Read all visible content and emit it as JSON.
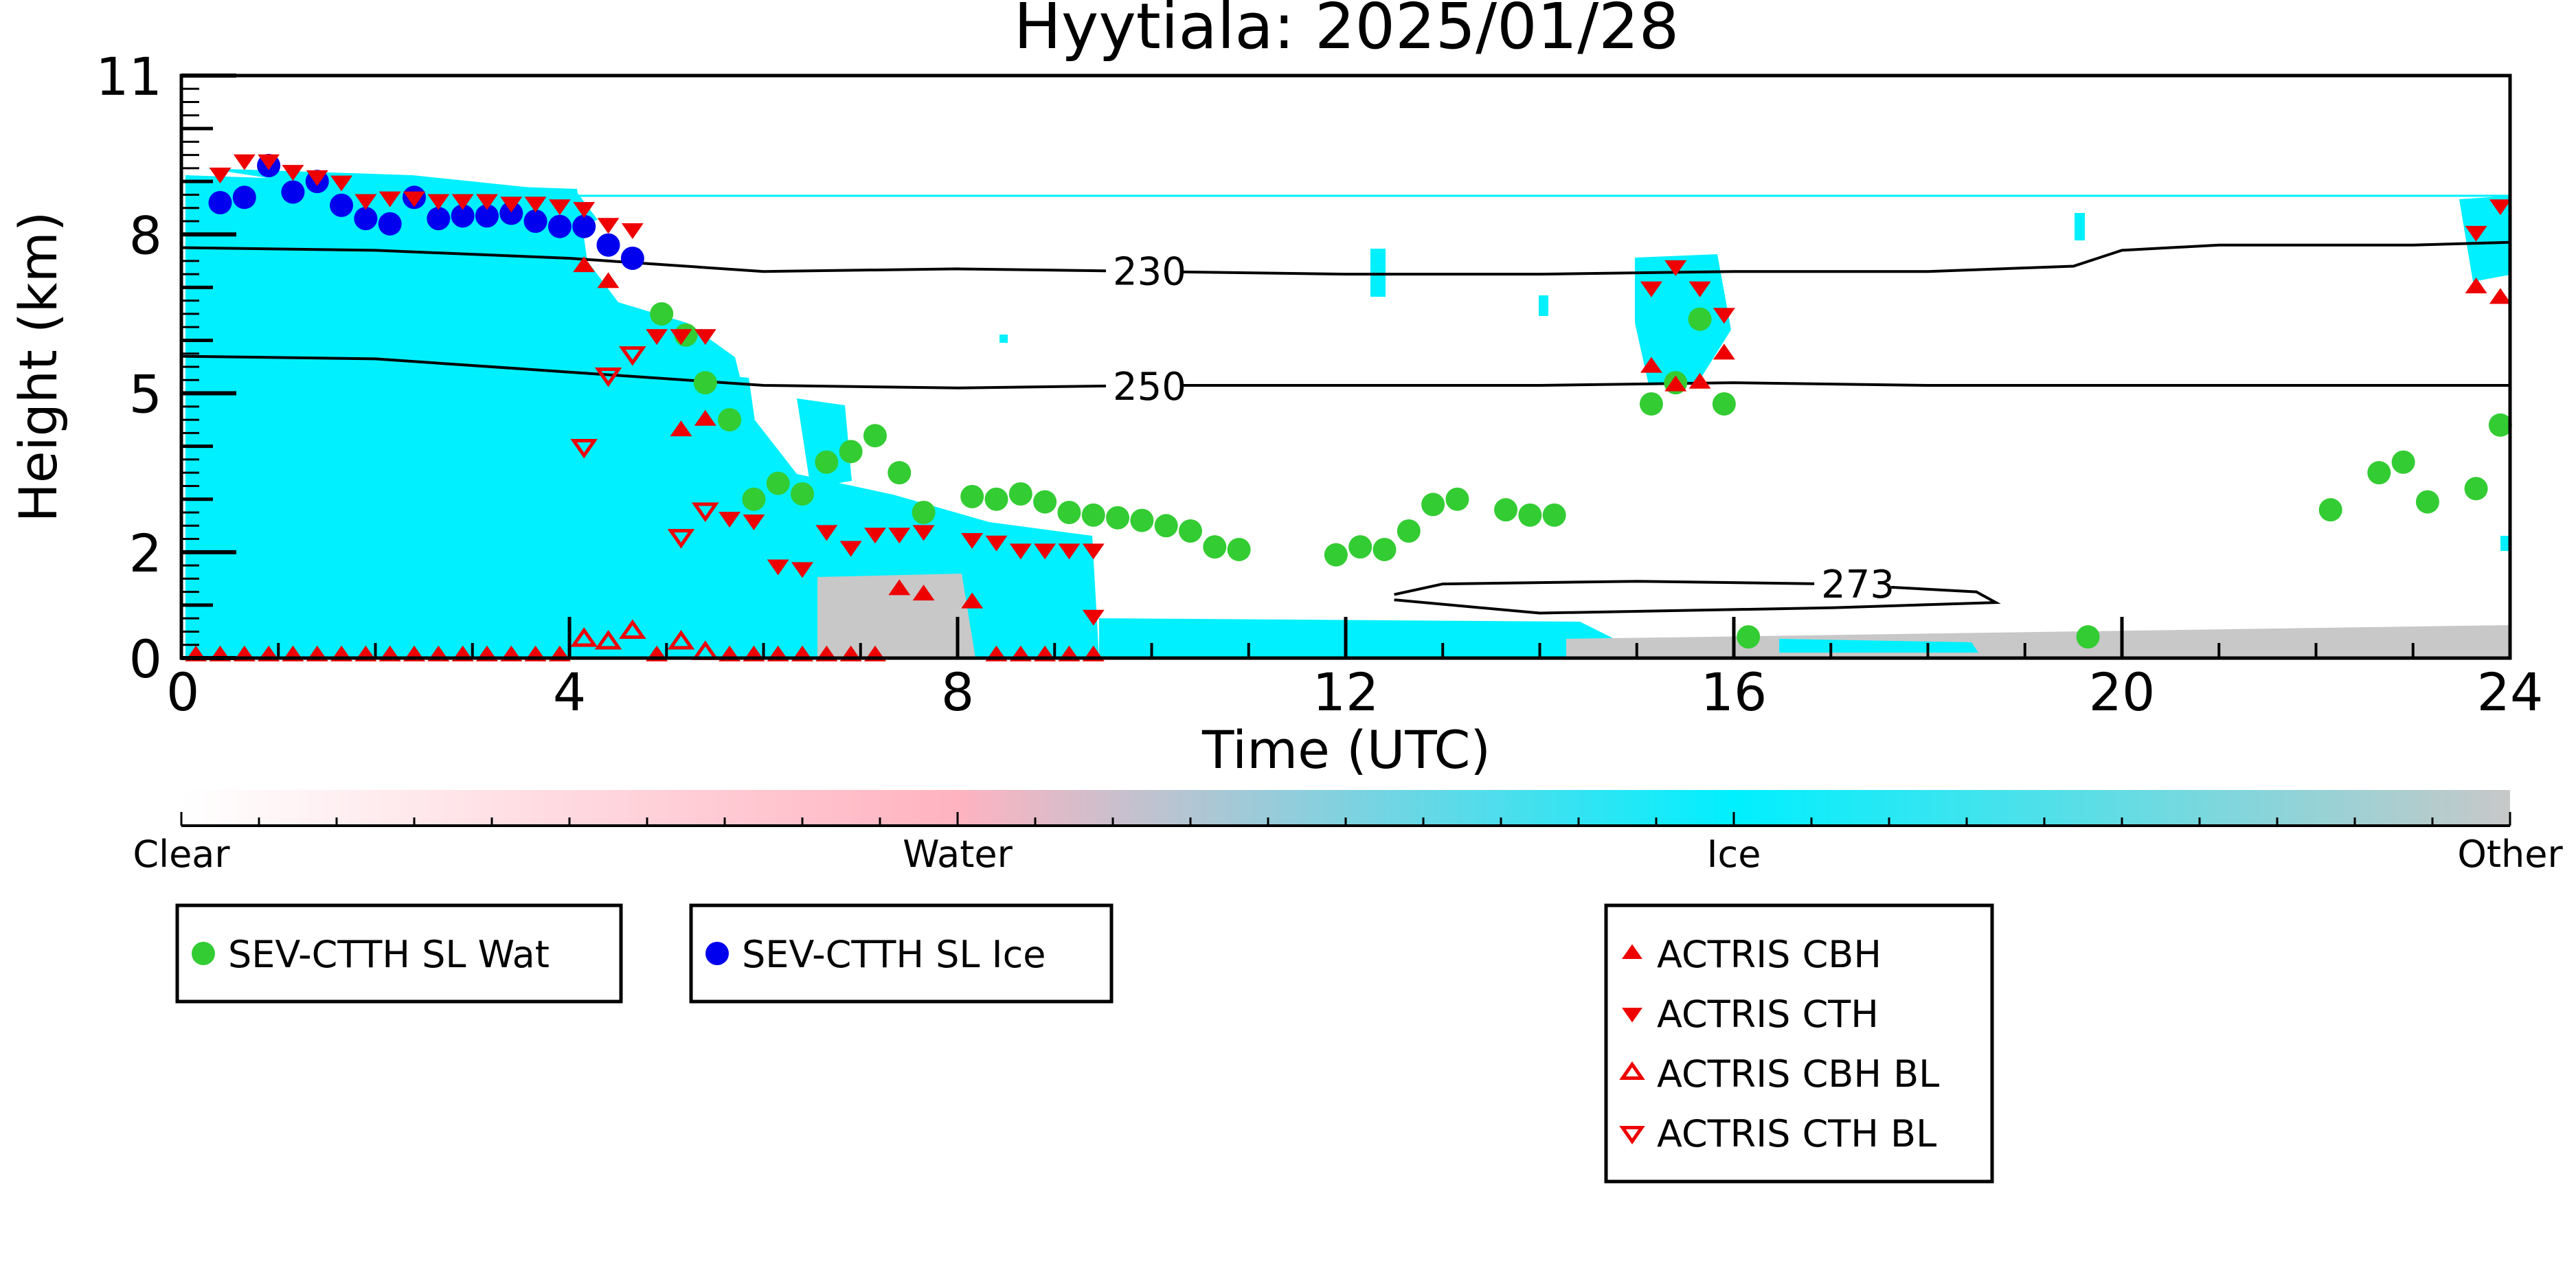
{
  "chart_data": {
    "type": "scatter",
    "title": "Hyytiala: 2025/01/28",
    "xlabel": "Time (UTC)",
    "ylabel": "Height (km)",
    "xlim": [
      0,
      24
    ],
    "ylim": [
      0,
      11
    ],
    "x_ticks": [
      0,
      4,
      8,
      12,
      16,
      20,
      24
    ],
    "y_ticks": [
      0,
      2,
      5,
      8,
      11
    ],
    "y_tick_labels": [
      "0",
      "2",
      "5",
      "8",
      "11"
    ],
    "colorbar": {
      "labels": [
        "Clear",
        "Water",
        "Ice",
        "Other"
      ],
      "colors": [
        "#ffffff",
        "#ffb3c0",
        "#00f0ff",
        "#c8c8c8"
      ]
    },
    "contours": [
      {
        "label": "230",
        "label_x": 9.6,
        "points": [
          [
            0,
            7.75
          ],
          [
            2,
            7.7
          ],
          [
            4,
            7.55
          ],
          [
            6,
            7.3
          ],
          [
            8,
            7.35
          ],
          [
            10,
            7.3
          ],
          [
            12,
            7.25
          ],
          [
            14,
            7.25
          ],
          [
            16,
            7.3
          ],
          [
            18,
            7.3
          ],
          [
            19.5,
            7.4
          ],
          [
            20,
            7.7
          ],
          [
            21,
            7.8
          ],
          [
            23,
            7.8
          ],
          [
            24,
            7.85
          ]
        ]
      },
      {
        "label": "250",
        "label_x": 9.6,
        "points": [
          [
            0,
            5.7
          ],
          [
            2,
            5.65
          ],
          [
            4,
            5.4
          ],
          [
            6,
            5.15
          ],
          [
            8,
            5.1
          ],
          [
            10,
            5.15
          ],
          [
            12,
            5.15
          ],
          [
            14,
            5.15
          ],
          [
            16,
            5.2
          ],
          [
            18,
            5.15
          ],
          [
            20,
            5.15
          ],
          [
            22,
            5.15
          ],
          [
            24,
            5.15
          ]
        ]
      },
      {
        "label": "273",
        "label_x": 16.9,
        "points": [
          [
            12.5,
            1.2
          ],
          [
            13,
            1.4
          ],
          [
            15,
            1.45
          ],
          [
            17,
            1.4
          ],
          [
            18.5,
            1.25
          ],
          [
            18.7,
            1.05
          ],
          [
            17,
            0.95
          ],
          [
            14,
            0.85
          ],
          [
            12.5,
            1.1
          ]
        ]
      }
    ],
    "series": [
      {
        "name": "SEV-CTTH SL Wat",
        "marker": "circle",
        "color": "#33cc33",
        "points": [
          [
            4.95,
            6.5
          ],
          [
            5.2,
            6.1
          ],
          [
            5.4,
            5.2
          ],
          [
            5.65,
            4.5
          ],
          [
            5.9,
            3.0
          ],
          [
            6.15,
            3.3
          ],
          [
            6.4,
            3.1
          ],
          [
            6.65,
            3.7
          ],
          [
            6.9,
            3.9
          ],
          [
            7.15,
            4.2
          ],
          [
            7.4,
            3.5
          ],
          [
            7.65,
            2.75
          ],
          [
            8.15,
            3.05
          ],
          [
            8.4,
            3.0
          ],
          [
            8.65,
            3.1
          ],
          [
            8.9,
            2.95
          ],
          [
            9.15,
            2.75
          ],
          [
            9.4,
            2.7
          ],
          [
            9.65,
            2.65
          ],
          [
            9.9,
            2.6
          ],
          [
            10.15,
            2.5
          ],
          [
            10.4,
            2.4
          ],
          [
            10.65,
            2.1
          ],
          [
            10.9,
            2.05
          ],
          [
            11.9,
            1.95
          ],
          [
            12.15,
            2.1
          ],
          [
            12.4,
            2.05
          ],
          [
            12.65,
            2.4
          ],
          [
            12.9,
            2.9
          ],
          [
            13.15,
            3.0
          ],
          [
            13.65,
            2.8
          ],
          [
            13.9,
            2.7
          ],
          [
            14.15,
            2.7
          ],
          [
            15.15,
            4.8
          ],
          [
            15.4,
            5.2
          ],
          [
            15.65,
            6.4
          ],
          [
            15.9,
            4.8
          ],
          [
            16.15,
            0.4
          ],
          [
            19.65,
            0.4
          ],
          [
            22.15,
            2.8
          ],
          [
            22.65,
            3.5
          ],
          [
            22.9,
            3.7
          ],
          [
            23.15,
            2.95
          ],
          [
            23.65,
            3.2
          ],
          [
            23.9,
            4.4
          ]
        ]
      },
      {
        "name": "SEV-CTTH SL Ice",
        "marker": "circle",
        "color": "#0000ee",
        "points": [
          [
            0.4,
            8.6
          ],
          [
            0.65,
            8.7
          ],
          [
            0.9,
            9.3
          ],
          [
            1.15,
            8.8
          ],
          [
            1.4,
            9.0
          ],
          [
            1.65,
            8.55
          ],
          [
            1.9,
            8.3
          ],
          [
            2.15,
            8.2
          ],
          [
            2.4,
            8.7
          ],
          [
            2.65,
            8.3
          ],
          [
            2.9,
            8.35
          ],
          [
            3.15,
            8.35
          ],
          [
            3.4,
            8.4
          ],
          [
            3.65,
            8.25
          ],
          [
            3.9,
            8.15
          ],
          [
            4.15,
            8.15
          ],
          [
            4.4,
            7.8
          ],
          [
            4.65,
            7.55
          ]
        ]
      },
      {
        "name": "ACTRIS CBH",
        "marker": "triangle-up",
        "color": "#ee0000",
        "points": [
          [
            0.15,
            0.05
          ],
          [
            0.4,
            0.05
          ],
          [
            0.65,
            0.05
          ],
          [
            0.9,
            0.05
          ],
          [
            1.15,
            0.05
          ],
          [
            1.4,
            0.05
          ],
          [
            1.65,
            0.05
          ],
          [
            1.9,
            0.05
          ],
          [
            2.15,
            0.05
          ],
          [
            2.4,
            0.05
          ],
          [
            2.65,
            0.05
          ],
          [
            2.9,
            0.05
          ],
          [
            3.15,
            0.05
          ],
          [
            3.4,
            0.05
          ],
          [
            3.65,
            0.05
          ],
          [
            3.9,
            0.05
          ],
          [
            4.15,
            7.4
          ],
          [
            4.4,
            7.1
          ],
          [
            4.9,
            0.05
          ],
          [
            5.15,
            4.3
          ],
          [
            5.4,
            4.5
          ],
          [
            5.65,
            0.05
          ],
          [
            5.9,
            0.05
          ],
          [
            6.15,
            0.05
          ],
          [
            6.4,
            0.05
          ],
          [
            6.65,
            0.05
          ],
          [
            6.9,
            0.05
          ],
          [
            7.15,
            0.05
          ],
          [
            7.4,
            1.3
          ],
          [
            7.65,
            1.2
          ],
          [
            8.15,
            1.05
          ],
          [
            8.4,
            0.05
          ],
          [
            8.65,
            0.05
          ],
          [
            8.9,
            0.05
          ],
          [
            9.15,
            0.05
          ],
          [
            9.4,
            0.05
          ],
          [
            15.15,
            5.5
          ],
          [
            15.4,
            5.15
          ],
          [
            15.65,
            5.2
          ],
          [
            15.9,
            5.75
          ],
          [
            23.65,
            7.0
          ],
          [
            23.9,
            6.8
          ]
        ]
      },
      {
        "name": "ACTRIS CTH",
        "marker": "triangle-down",
        "color": "#ee0000",
        "points": [
          [
            0.4,
            9.15
          ],
          [
            0.65,
            9.4
          ],
          [
            0.9,
            9.4
          ],
          [
            1.15,
            9.2
          ],
          [
            1.4,
            9.1
          ],
          [
            1.65,
            9.0
          ],
          [
            1.9,
            8.65
          ],
          [
            2.15,
            8.7
          ],
          [
            2.4,
            8.7
          ],
          [
            2.65,
            8.65
          ],
          [
            2.9,
            8.65
          ],
          [
            3.15,
            8.65
          ],
          [
            3.4,
            8.6
          ],
          [
            3.65,
            8.6
          ],
          [
            3.9,
            8.55
          ],
          [
            4.15,
            8.5
          ],
          [
            4.4,
            8.2
          ],
          [
            4.65,
            8.1
          ],
          [
            4.9,
            6.1
          ],
          [
            5.15,
            6.1
          ],
          [
            5.4,
            6.1
          ],
          [
            5.65,
            2.65
          ],
          [
            5.9,
            2.6
          ],
          [
            6.15,
            1.75
          ],
          [
            6.4,
            1.7
          ],
          [
            6.65,
            2.4
          ],
          [
            6.9,
            2.1
          ],
          [
            7.15,
            2.35
          ],
          [
            7.4,
            2.35
          ],
          [
            7.65,
            2.4
          ],
          [
            8.15,
            2.25
          ],
          [
            8.4,
            2.2
          ],
          [
            8.65,
            2.05
          ],
          [
            8.9,
            2.05
          ],
          [
            9.15,
            2.05
          ],
          [
            9.4,
            2.05
          ],
          [
            9.4,
            0.8
          ],
          [
            15.15,
            7.0
          ],
          [
            15.4,
            7.4
          ],
          [
            15.65,
            7.0
          ],
          [
            15.9,
            6.5
          ],
          [
            23.65,
            8.05
          ],
          [
            23.9,
            8.55
          ]
        ]
      },
      {
        "name": "ACTRIS CBH BL",
        "marker": "triangle-up-open",
        "color": "#ee0000",
        "points": [
          [
            4.15,
            0.35
          ],
          [
            4.4,
            0.3
          ],
          [
            4.65,
            0.5
          ],
          [
            5.15,
            0.3
          ],
          [
            5.4,
            0.1
          ]
        ]
      },
      {
        "name": "ACTRIS CTH BL",
        "marker": "triangle-down-open",
        "color": "#ee0000",
        "points": [
          [
            4.15,
            4.0
          ],
          [
            4.4,
            5.35
          ],
          [
            4.65,
            5.75
          ],
          [
            5.15,
            2.3
          ],
          [
            5.4,
            2.8
          ]
        ]
      }
    ],
    "legends": [
      {
        "entries": [
          "SEV-CTTH SL Wat"
        ]
      },
      {
        "entries": [
          "SEV-CTTH SL Ice"
        ]
      },
      {
        "entries": [
          "ACTRIS CBH",
          "ACTRIS CTH",
          "ACTRIS CBH BL",
          "ACTRIS CTH BL"
        ]
      }
    ]
  }
}
